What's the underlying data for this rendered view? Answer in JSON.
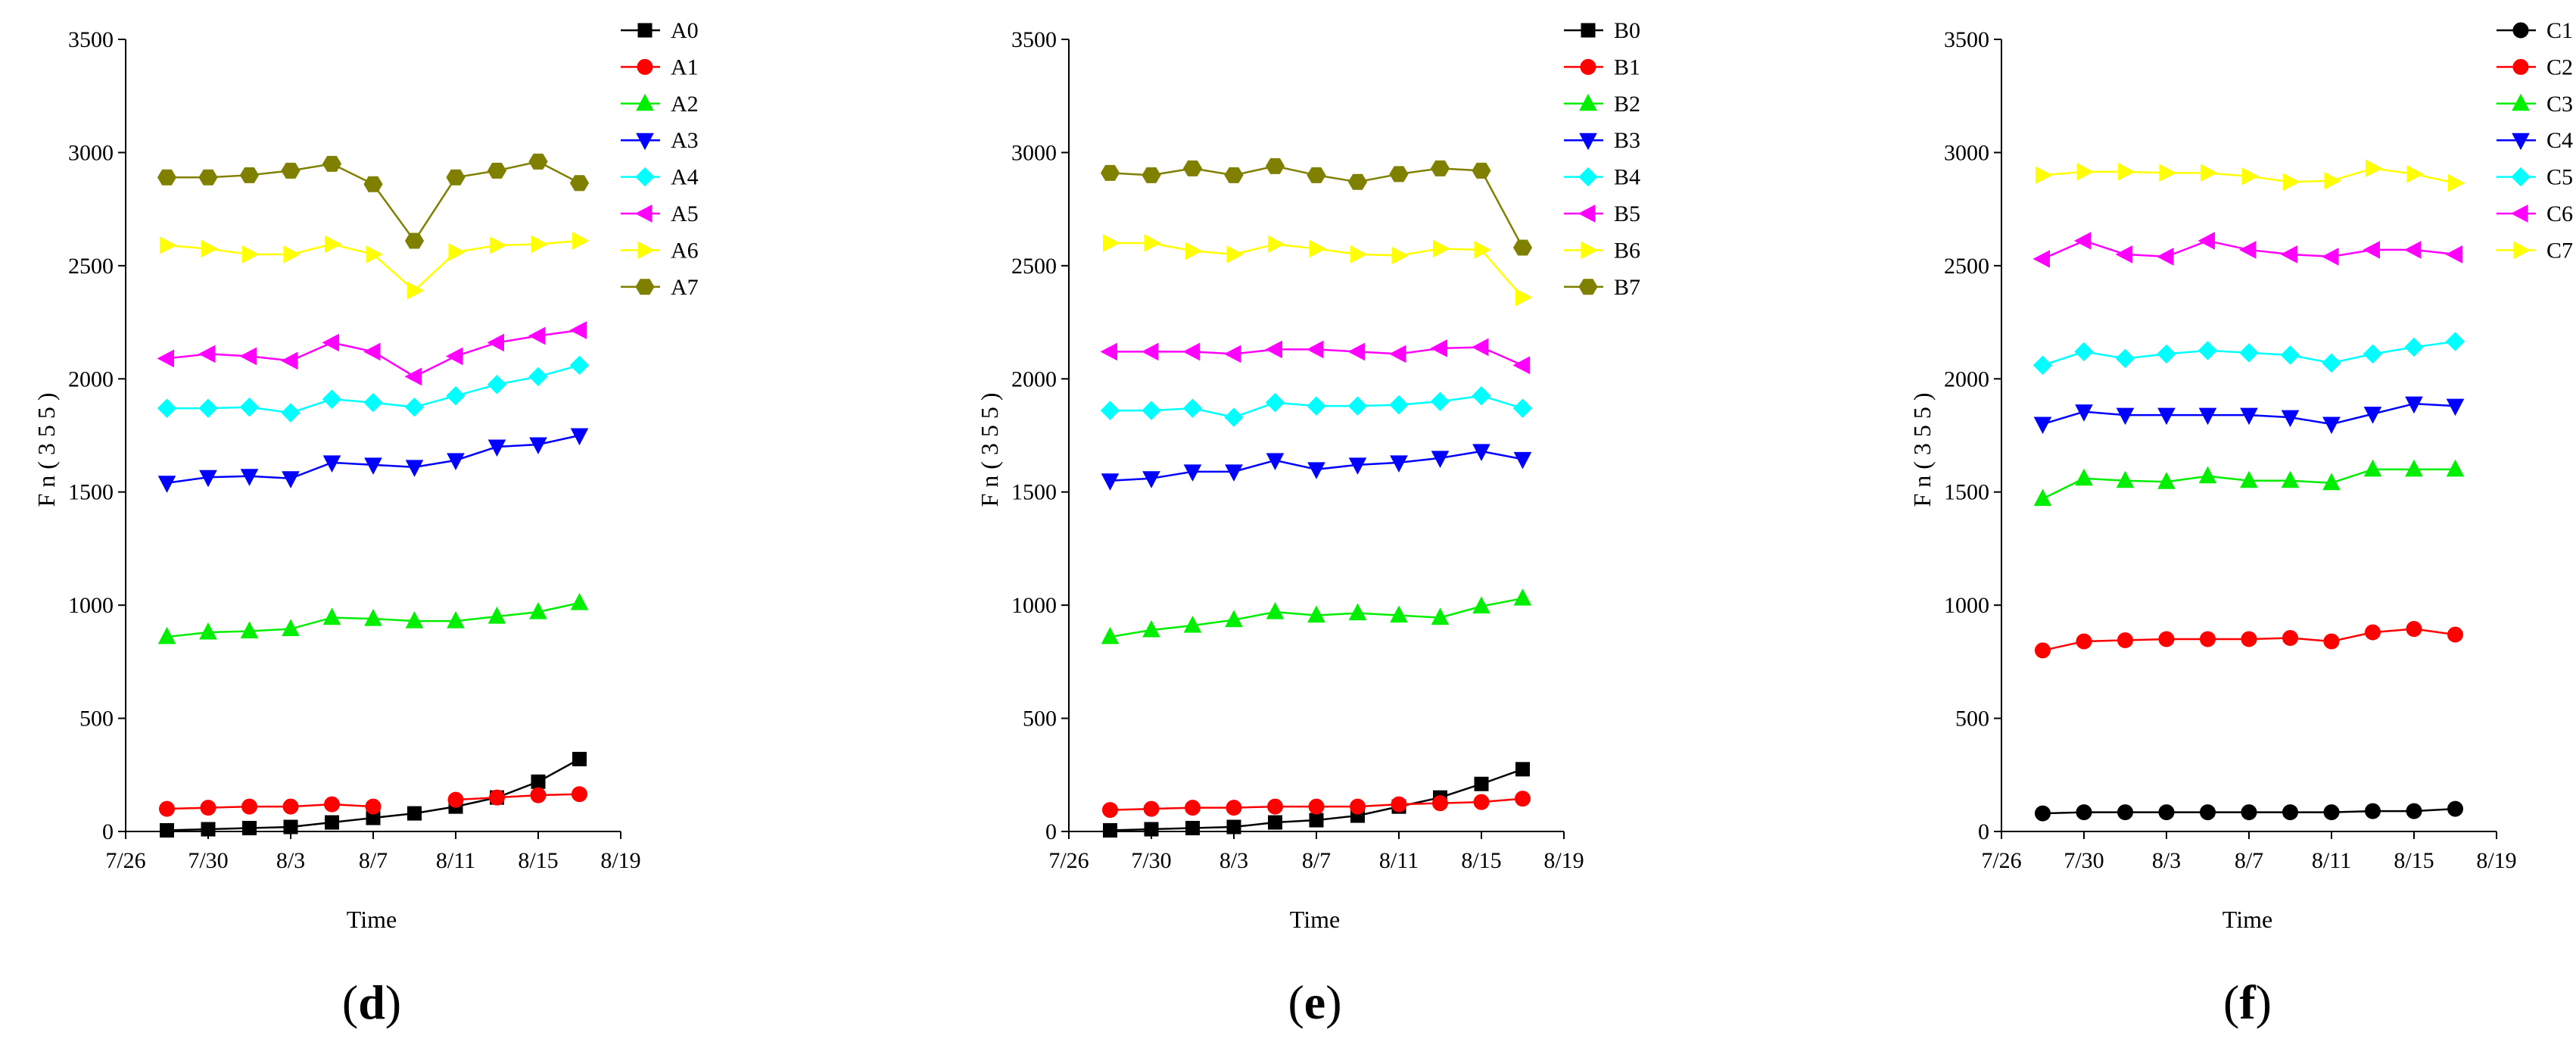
{
  "colors": {
    "s0": "#000000",
    "s1": "#ff0000",
    "s2": "#00ee00",
    "s3": "#0000ff",
    "s4": "#00ffff",
    "s5": "#ff00ff",
    "s6": "#ffff00",
    "s7": "#808000"
  },
  "chart_data": [
    {
      "type": "line",
      "panel": "d",
      "xlabel": "Time",
      "ylabel": "F n ( 3 5 5 )",
      "xticks": [
        "7/26",
        "7/30",
        "8/3",
        "8/7",
        "8/11",
        "8/15",
        "8/19"
      ],
      "yticks": [
        "0",
        "500",
        "1000",
        "1500",
        "2000",
        "2500",
        "3000",
        "3500"
      ],
      "ylim": [
        0,
        3500
      ],
      "x_days": [
        2,
        4,
        6,
        8,
        10,
        12,
        14,
        16,
        18,
        20,
        22
      ],
      "series": [
        {
          "name": "A0",
          "marker": "square",
          "color": "#000000",
          "values": [
            5,
            10,
            15,
            20,
            40,
            60,
            80,
            110,
            150,
            220,
            320
          ]
        },
        {
          "name": "A1",
          "marker": "circle",
          "color": "#ff0000",
          "values": [
            100,
            105,
            110,
            110,
            120,
            110,
            null,
            140,
            150,
            160,
            165
          ]
        },
        {
          "name": "A2",
          "marker": "triangle-up",
          "color": "#00ee00",
          "values": [
            860,
            880,
            885,
            895,
            945,
            940,
            930,
            930,
            950,
            970,
            1010
          ]
        },
        {
          "name": "A3",
          "marker": "triangle-down",
          "color": "#0000ff",
          "values": [
            1540,
            1565,
            1570,
            1560,
            1630,
            1620,
            1610,
            1640,
            1700,
            1710,
            1750
          ]
        },
        {
          "name": "A4",
          "marker": "diamond",
          "color": "#00ffff",
          "values": [
            1870,
            1870,
            1875,
            1850,
            1910,
            1895,
            1875,
            1925,
            1975,
            2010,
            2060
          ]
        },
        {
          "name": "A5",
          "marker": "triangle-left",
          "color": "#ff00ff",
          "values": [
            2090,
            2110,
            2100,
            2080,
            2160,
            2120,
            2010,
            2100,
            2160,
            2190,
            2215
          ]
        },
        {
          "name": "A6",
          "marker": "triangle-right",
          "color": "#ffff00",
          "values": [
            2590,
            2575,
            2550,
            2550,
            2595,
            2550,
            2390,
            2560,
            2590,
            2595,
            2610
          ]
        },
        {
          "name": "A7",
          "marker": "hexagon",
          "color": "#808000",
          "values": [
            2890,
            2890,
            2900,
            2920,
            2950,
            2860,
            2610,
            2890,
            2920,
            2960,
            2865
          ]
        }
      ]
    },
    {
      "type": "line",
      "panel": "e",
      "xlabel": "Time",
      "ylabel": "F n ( 3 5 5 )",
      "xticks": [
        "7/26",
        "7/30",
        "8/3",
        "8/7",
        "8/11",
        "8/15",
        "8/19"
      ],
      "yticks": [
        "0",
        "500",
        "1000",
        "1500",
        "2000",
        "2500",
        "3000",
        "3500"
      ],
      "ylim": [
        0,
        3500
      ],
      "x_days": [
        2,
        4,
        6,
        8,
        10,
        12,
        14,
        16,
        18,
        20,
        22
      ],
      "series": [
        {
          "name": "B0",
          "marker": "square",
          "color": "#000000",
          "values": [
            5,
            10,
            15,
            20,
            40,
            50,
            70,
            110,
            150,
            210,
            275
          ]
        },
        {
          "name": "B1",
          "marker": "circle",
          "color": "#ff0000",
          "values": [
            95,
            100,
            105,
            105,
            110,
            110,
            110,
            120,
            125,
            130,
            145
          ]
        },
        {
          "name": "B2",
          "marker": "triangle-up",
          "color": "#00ee00",
          "values": [
            860,
            890,
            910,
            935,
            970,
            955,
            965,
            955,
            945,
            995,
            1030
          ]
        },
        {
          "name": "B3",
          "marker": "triangle-down",
          "color": "#0000ff",
          "values": [
            1550,
            1560,
            1590,
            1590,
            1640,
            1600,
            1620,
            1630,
            1650,
            1680,
            1645
          ]
        },
        {
          "name": "B4",
          "marker": "diamond",
          "color": "#00ffff",
          "values": [
            1860,
            1860,
            1870,
            1830,
            1895,
            1880,
            1880,
            1885,
            1900,
            1925,
            1870
          ]
        },
        {
          "name": "B5",
          "marker": "triangle-left",
          "color": "#ff00ff",
          "values": [
            2120,
            2120,
            2120,
            2110,
            2130,
            2130,
            2120,
            2110,
            2135,
            2140,
            2060
          ]
        },
        {
          "name": "B6",
          "marker": "triangle-right",
          "color": "#ffff00",
          "values": [
            2600,
            2600,
            2565,
            2550,
            2595,
            2575,
            2550,
            2545,
            2575,
            2570,
            2360
          ]
        },
        {
          "name": "B7",
          "marker": "hexagon",
          "color": "#808000",
          "values": [
            2910,
            2900,
            2930,
            2900,
            2940,
            2900,
            2870,
            2905,
            2930,
            2920,
            2580
          ]
        }
      ]
    },
    {
      "type": "line",
      "panel": "f",
      "xlabel": "Time",
      "ylabel": "F n ( 3 5 5 )",
      "xticks": [
        "7/26",
        "7/30",
        "8/3",
        "8/7",
        "8/11",
        "8/15",
        "8/19"
      ],
      "yticks": [
        "0",
        "500",
        "1000",
        "1500",
        "2000",
        "2500",
        "3000",
        "3500"
      ],
      "ylim": [
        0,
        3500
      ],
      "x_days": [
        2,
        4,
        6,
        8,
        10,
        12,
        14,
        16,
        18,
        20,
        22
      ],
      "series": [
        {
          "name": "C1",
          "marker": "circle",
          "color": "#000000",
          "values": [
            80,
            85,
            85,
            85,
            85,
            85,
            85,
            85,
            90,
            90,
            100
          ]
        },
        {
          "name": "C2",
          "marker": "circle",
          "color": "#ff0000",
          "values": [
            800,
            840,
            845,
            850,
            850,
            850,
            855,
            840,
            880,
            895,
            870
          ]
        },
        {
          "name": "C3",
          "marker": "triangle-up",
          "color": "#00ee00",
          "values": [
            1470,
            1560,
            1550,
            1545,
            1570,
            1550,
            1550,
            1540,
            1600,
            1600,
            1600
          ]
        },
        {
          "name": "C4",
          "marker": "triangle-down",
          "color": "#0000ff",
          "values": [
            1800,
            1855,
            1840,
            1840,
            1840,
            1840,
            1830,
            1800,
            1845,
            1890,
            1880
          ]
        },
        {
          "name": "C5",
          "marker": "diamond",
          "color": "#00ffff",
          "values": [
            2060,
            2120,
            2090,
            2110,
            2125,
            2115,
            2105,
            2070,
            2110,
            2140,
            2165
          ]
        },
        {
          "name": "C6",
          "marker": "triangle-left",
          "color": "#ff00ff",
          "values": [
            2530,
            2610,
            2550,
            2540,
            2610,
            2570,
            2550,
            2540,
            2570,
            2570,
            2550
          ]
        },
        {
          "name": "C7",
          "marker": "triangle-right",
          "color": "#ffff00",
          "values": [
            2900,
            2915,
            2915,
            2910,
            2910,
            2895,
            2870,
            2875,
            2930,
            2905,
            2865
          ]
        }
      ]
    }
  ]
}
